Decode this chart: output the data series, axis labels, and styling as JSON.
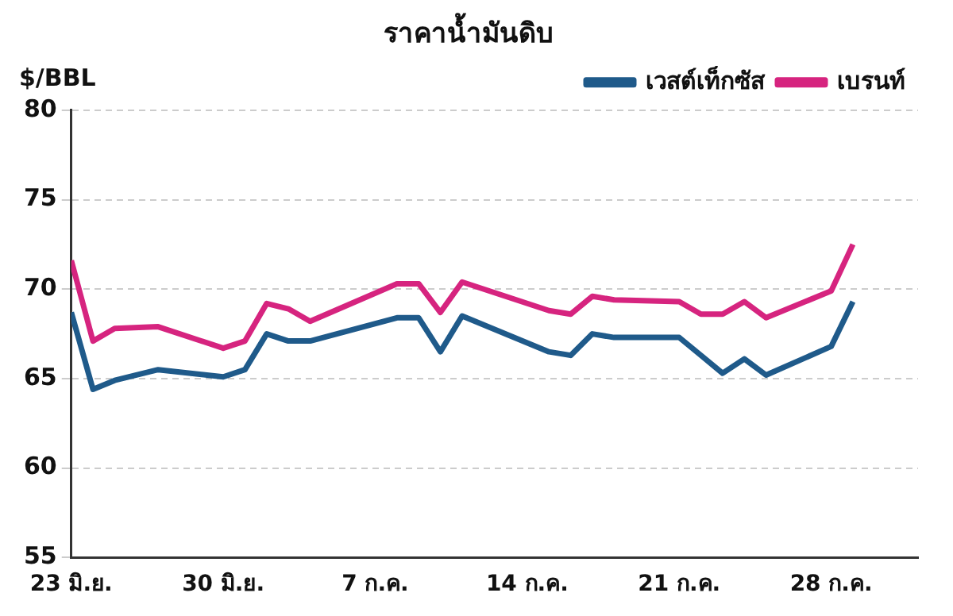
{
  "chart_data": {
    "type": "line",
    "title": "ราคาน้ำมันดิบ",
    "ylabel": "$/BBL",
    "x": [
      "--06-23",
      "--06-24",
      "--06-25",
      "--06-27",
      "--06-30",
      "--07-01",
      "--07-02",
      "--07-03",
      "--07-04",
      "--07-08",
      "--07-09",
      "--07-10",
      "--07-11",
      "--07-15",
      "--07-16",
      "--07-17",
      "--07-18",
      "--07-21",
      "--07-22",
      "--07-23",
      "--07-24",
      "--07-25",
      "--07-28",
      "--07-29"
    ],
    "series": [
      {
        "name": "เวสต์เท็กซัส",
        "color": "#1f5a8a",
        "values": [
          68.7,
          64.4,
          64.9,
          65.5,
          65.1,
          65.5,
          67.5,
          67.1,
          67.1,
          68.4,
          68.4,
          66.5,
          68.5,
          66.5,
          66.3,
          67.5,
          67.3,
          67.3,
          66.3,
          65.3,
          66.1,
          65.2,
          66.8,
          69.3
        ]
      },
      {
        "name": "เบรนท์",
        "color": "#d6247f",
        "values": [
          71.6,
          67.1,
          67.8,
          67.9,
          66.7,
          67.1,
          69.2,
          68.9,
          68.2,
          70.3,
          70.3,
          68.7,
          70.4,
          68.8,
          68.6,
          69.6,
          69.4,
          69.3,
          68.6,
          68.6,
          69.3,
          68.4,
          69.9,
          72.5
        ]
      }
    ],
    "xlim": [
      "--06-23",
      "--08-01"
    ],
    "xticks": [
      {
        "value": "--06-23",
        "label": "23 มิ.ย."
      },
      {
        "value": "--06-30",
        "label": "30 มิ.ย."
      },
      {
        "value": "--07-07",
        "label": "7 ก.ค."
      },
      {
        "value": "--07-14",
        "label": "14 ก.ค."
      },
      {
        "value": "--07-21",
        "label": "21 ก.ค."
      },
      {
        "value": "--07-28",
        "label": "28 ก.ค."
      }
    ],
    "ylim": [
      55,
      80
    ],
    "yticks": [
      55,
      60,
      65,
      70,
      75,
      80
    ],
    "grid": "y",
    "legend": "top right",
    "marker": "none",
    "line_style": "solid"
  }
}
